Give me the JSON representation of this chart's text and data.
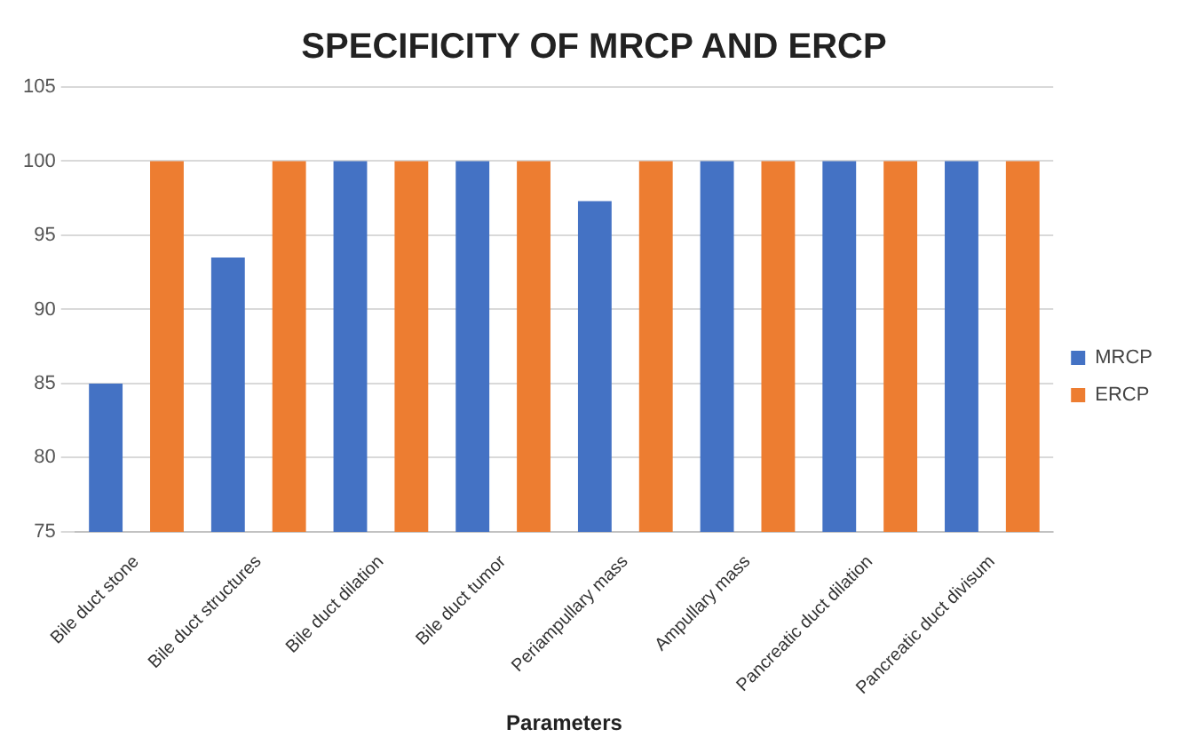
{
  "chart_data": {
    "type": "bar",
    "title": "SPECIFICITY OF MRCP AND ERCP",
    "xlabel": "Parameters",
    "categories": [
      "Bile duct stone",
      "Bile duct structures",
      "Bile duct dilation",
      "Bile duct tumor",
      "Periampullary mass",
      "Ampullary mass",
      "Pancreatic duct dilation",
      "Pancreatic duct divisum"
    ],
    "series": [
      {
        "name": "MRCP",
        "color": "#4472c4",
        "values": [
          85,
          93.5,
          100,
          100,
          97.3,
          100,
          100,
          100
        ]
      },
      {
        "name": "ERCP",
        "color": "#ed7d31",
        "values": [
          100,
          100,
          100,
          100,
          100,
          100,
          100,
          100
        ]
      }
    ],
    "ylim": [
      75,
      105
    ],
    "yticks": [
      75,
      80,
      85,
      90,
      95,
      100,
      105
    ],
    "grid": "y",
    "legend": "right"
  }
}
